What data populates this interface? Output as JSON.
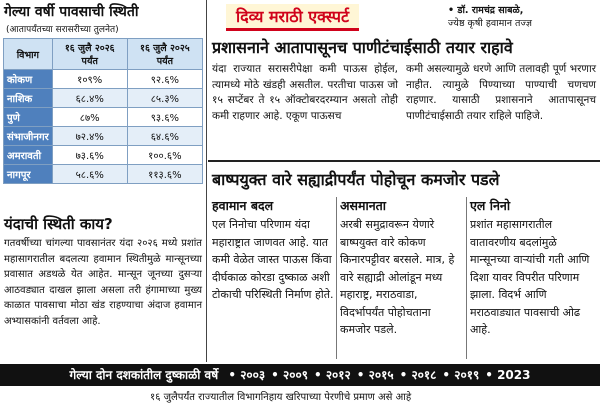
{
  "left": {
    "title": "गेल्या वर्षी पावसाची स्थिती",
    "subtitle": "(आतापर्यंतच्या सरासरीच्या तुलनेत)",
    "heading": "यंदाची स्थिती काय?",
    "body": "गतवर्षीच्या चांगल्या पावसानंतर यंदा २०२६ मध्ये प्रशांत महासागरातील बदलत्या हवामान स्थितीमुळे मान्सूनच्या प्रवासात अडथळे येत आहेत. मान्सून जूनच्या दुसऱ्या आठवड्यात दाखल झाला असला तरी हंगामाच्या मुख्य काळात पावसाचा मोठा खंड राहण्याचा अंदाज हवामान अभ्यासकांनी वर्तवला आहे."
  },
  "table": {
    "header": [
      "विभाग",
      "१६ जुलै २०२६ पर्यंत",
      "१६ जुलै २०२५ पर्यंत"
    ],
    "rows": [
      [
        "कोकण",
        "१०९%",
        "९२.६%"
      ],
      [
        "नाशिक",
        "६८.४%",
        "८५.३%"
      ],
      [
        "पुणे",
        "८७%",
        "९३.६%"
      ],
      [
        "संभाजीनगर",
        "७२.४%",
        "६४.६%"
      ],
      [
        "अमरावती",
        "७३.६%",
        "१००.६%"
      ],
      [
        "नागपूर",
        "५८.६%",
        "११३.६%"
      ]
    ]
  },
  "expert": {
    "banner": "दिव्य मराठी एक्स्पर्ट",
    "author_name": "• डॉ. रामचंद्र साबळे,",
    "author_role": "ज्येष्ठ कृषी हवामान तज्ज्ञ",
    "headline": "प्रशासनाने आतापासूनच पाणीटंचाईसाठी तयार राहावे",
    "col1": "यंदा राज्यात सरासरीपेक्षा कमी पाऊस होईल, त्यामध्ये मोठे खंडही असतील. परतीचा पाऊस जो १५ सप्टेंबर ते १५ ऑक्टोबरदरम्यान असतो तोही कमी राहणार आहे. एकूण पाऊसच",
    "col2": "कमी असल्यामुळे धरणे आणि तलावही पूर्ण भरणार नाहीत. त्यामुळे पिण्याच्या पाण्याची चणचण राहणार. यासाठी प्रशासनाने आतापासूनच पाणीटंचाईसाठी तयार राहिले पाहिजे."
  },
  "story": {
    "headline": "बाष्पयुक्त वारे सह्याद्रीपर्यंत पोहोचून कमजोर पडले",
    "sections": [
      {
        "heading": "हवामान बदल",
        "body": "एल निनोचा परिणाम यंदा महाराष्ट्रात जाणवत आहे. यात कमी वेळेत जास्त पाऊस किंवा दीर्घकाळ कोरडा दुष्काळ अशी टोकाची परिस्थिती निर्माण होते."
      },
      {
        "heading": "असमानता",
        "body": "अरबी समुद्रावरून येणारे बाष्पयुक्त वारे कोकण किनारपट्टीवर बरसले. मात्र, हे वारे सह्याद्री ओलांडून मध्य महाराष्ट्र, मराठवाडा, विदर्भापर्यंत पोहोचताना कमजोर पडले."
      },
      {
        "heading": "एल निनो",
        "body": "प्रशांत महासागरातील वातावरणीय बदलांमुळे मान्सूनच्या वाऱ्यांची गती आणि दिशा यावर विपरीत परिणाम झाला. विदर्भ आणि मराठवाड्यात पावसाची ओढ आहे."
      }
    ]
  },
  "footer": {
    "label": "गेल्या दोन दशकांतील दुष्काळी वर्षे",
    "years": [
      "• २००३",
      "• २००९",
      "• २०१२",
      "• २०१५",
      "• २०१८",
      "• २०१९",
      "• 2023"
    ],
    "teaser": "१६ जुलैपर्यंत राज्यातील विभागनिहाय खरिपाच्या पेरणीचे प्रमाण असे आहे"
  }
}
